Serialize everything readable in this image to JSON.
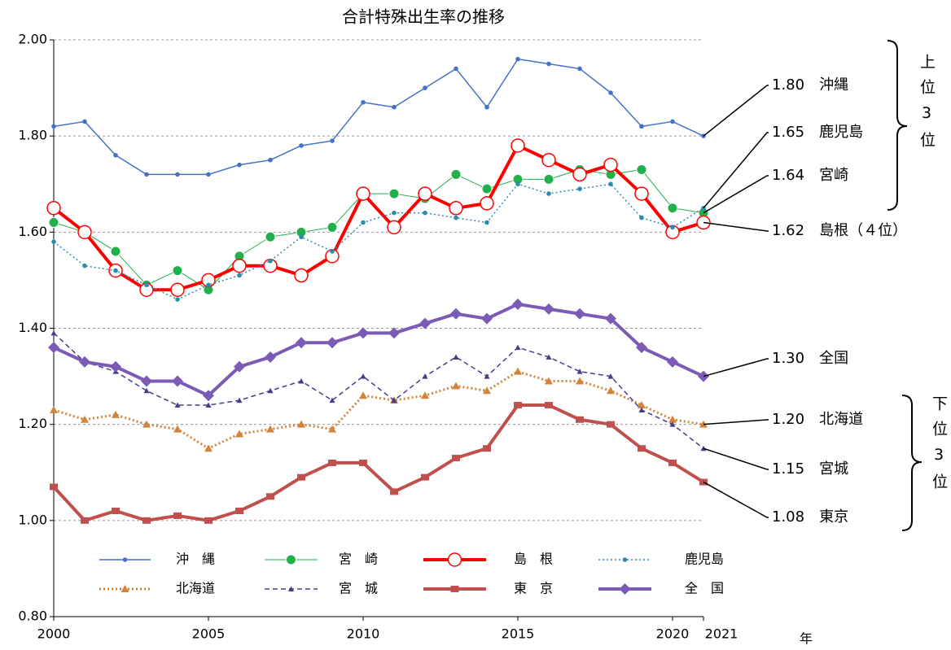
{
  "chart_data": {
    "type": "line",
    "title": "合計特殊出生率の推移",
    "x": [
      2000,
      2001,
      2002,
      2003,
      2004,
      2005,
      2006,
      2007,
      2008,
      2009,
      2010,
      2011,
      2012,
      2013,
      2014,
      2015,
      2016,
      2017,
      2018,
      2019,
      2020,
      2021
    ],
    "xlim": [
      2000,
      2021
    ],
    "xticks": [
      2000,
      2005,
      2010,
      2015,
      2020,
      2021
    ],
    "x_label": "年",
    "ylim": [
      0.8,
      2.0
    ],
    "yticks": [
      {
        "value": 0.8,
        "label": "0.80"
      },
      {
        "value": 1.0,
        "label": "1.00"
      },
      {
        "value": 1.2,
        "label": "1.20"
      },
      {
        "value": 1.4,
        "label": "1.40"
      },
      {
        "value": 1.6,
        "label": "1.60"
      },
      {
        "value": 1.8,
        "label": "1.80"
      },
      {
        "value": 2.0,
        "label": "2.00"
      }
    ],
    "grid": true,
    "series": [
      {
        "name": "沖　縄",
        "color": "#4472c4",
        "marker": "dot",
        "line_style": "solid",
        "line_width": 1.5,
        "values": [
          1.82,
          1.83,
          1.76,
          1.72,
          1.72,
          1.72,
          1.74,
          1.75,
          1.78,
          1.79,
          1.87,
          1.86,
          1.9,
          1.94,
          1.86,
          1.96,
          1.95,
          1.94,
          1.89,
          1.82,
          1.83,
          1.8
        ]
      },
      {
        "name": "宮　崎",
        "color": "#22b04b",
        "marker": "circle",
        "line_style": "solid",
        "line_width": 1,
        "values": [
          1.62,
          1.6,
          1.56,
          1.49,
          1.52,
          1.48,
          1.55,
          1.59,
          1.6,
          1.61,
          1.68,
          1.68,
          1.67,
          1.72,
          1.69,
          1.71,
          1.71,
          1.73,
          1.72,
          1.73,
          1.65,
          1.64
        ]
      },
      {
        "name": "島　根",
        "color": "#ff0000",
        "marker": "open-circle",
        "line_style": "solid",
        "line_width": 4,
        "values": [
          1.65,
          1.6,
          1.52,
          1.48,
          1.48,
          1.5,
          1.53,
          1.53,
          1.51,
          1.55,
          1.68,
          1.61,
          1.68,
          1.65,
          1.66,
          1.78,
          1.75,
          1.72,
          1.74,
          1.68,
          1.6,
          1.62
        ]
      },
      {
        "name": "鹿児島",
        "color": "#2e8bb0",
        "marker": "dot",
        "line_style": "dotted",
        "line_width": 1.5,
        "values": [
          1.58,
          1.53,
          1.52,
          1.49,
          1.46,
          1.49,
          1.51,
          1.54,
          1.59,
          1.56,
          1.62,
          1.64,
          1.64,
          1.63,
          1.62,
          1.7,
          1.68,
          1.69,
          1.7,
          1.63,
          1.61,
          1.65
        ]
      },
      {
        "name": "北海道",
        "color": "#d4843a",
        "marker": "triangle",
        "line_style": "dotted",
        "line_width": 3,
        "values": [
          1.23,
          1.21,
          1.22,
          1.2,
          1.19,
          1.15,
          1.18,
          1.19,
          1.2,
          1.19,
          1.26,
          1.25,
          1.26,
          1.28,
          1.27,
          1.31,
          1.29,
          1.29,
          1.27,
          1.24,
          1.21,
          1.2
        ]
      },
      {
        "name": "宮　城",
        "color": "#4b3a8c",
        "marker": "small-triangle",
        "line_style": "dashed",
        "line_width": 1.5,
        "values": [
          1.39,
          1.33,
          1.31,
          1.27,
          1.24,
          1.24,
          1.25,
          1.27,
          1.29,
          1.25,
          1.3,
          1.25,
          1.3,
          1.34,
          1.3,
          1.36,
          1.34,
          1.31,
          1.3,
          1.23,
          1.2,
          1.15
        ]
      },
      {
        "name": "東　京",
        "color": "#c0504d",
        "marker": "square",
        "line_style": "solid",
        "line_width": 4,
        "values": [
          1.07,
          1.0,
          1.02,
          1.0,
          1.01,
          1.0,
          1.02,
          1.05,
          1.09,
          1.12,
          1.12,
          1.06,
          1.09,
          1.13,
          1.15,
          1.24,
          1.24,
          1.21,
          1.2,
          1.15,
          1.12,
          1.08
        ]
      },
      {
        "name": "全　国",
        "color": "#7b5bb5",
        "marker": "diamond",
        "line_style": "solid",
        "line_width": 4,
        "values": [
          1.36,
          1.33,
          1.32,
          1.29,
          1.29,
          1.26,
          1.32,
          1.34,
          1.37,
          1.37,
          1.39,
          1.39,
          1.41,
          1.43,
          1.42,
          1.45,
          1.44,
          1.43,
          1.42,
          1.36,
          1.33,
          1.3
        ]
      }
    ],
    "annotations": [
      "1.80　沖縄",
      "1.65　鹿児島",
      "1.64　宮崎",
      "1.62　島根（４位）",
      "1.30　全国",
      "1.20　北海道",
      "1.15　宮城",
      "1.08　東京"
    ],
    "upper_group": "上位3位",
    "lower_group": "下位3位"
  }
}
